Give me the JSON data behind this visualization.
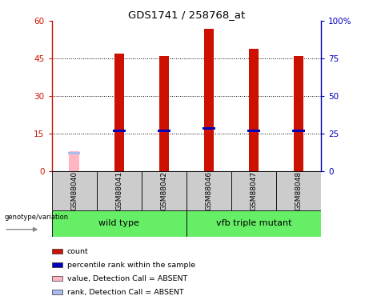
{
  "title": "GDS1741 / 258768_at",
  "samples": [
    "GSM88040",
    "GSM88041",
    "GSM88042",
    "GSM88046",
    "GSM88047",
    "GSM88048"
  ],
  "count_values": [
    8,
    47,
    46,
    57,
    49,
    46
  ],
  "percentile_values": [
    7,
    16,
    16,
    17,
    16,
    16
  ],
  "absent_flags": [
    true,
    false,
    false,
    false,
    false,
    false
  ],
  "ylim_left": [
    0,
    60
  ],
  "ylim_right": [
    0,
    100
  ],
  "yticks_left": [
    0,
    15,
    30,
    45,
    60
  ],
  "yticks_right": [
    0,
    25,
    50,
    75,
    100
  ],
  "bar_color_present": "#CC1100",
  "bar_color_absent": "#FFB6C1",
  "percentile_color_present": "#0000BB",
  "percentile_color_absent": "#AABBEE",
  "bar_width": 0.4,
  "sample_box_color": "#CCCCCC",
  "wt_color": "#66EE66",
  "vfb_color": "#66EE66",
  "legend_items": [
    {
      "color": "#CC1100",
      "label": "count"
    },
    {
      "color": "#0000BB",
      "label": "percentile rank within the sample"
    },
    {
      "color": "#FFB6C1",
      "label": "value, Detection Call = ABSENT"
    },
    {
      "color": "#AABBEE",
      "label": "rank, Detection Call = ABSENT"
    }
  ],
  "genotype_label": "genotype/variation"
}
